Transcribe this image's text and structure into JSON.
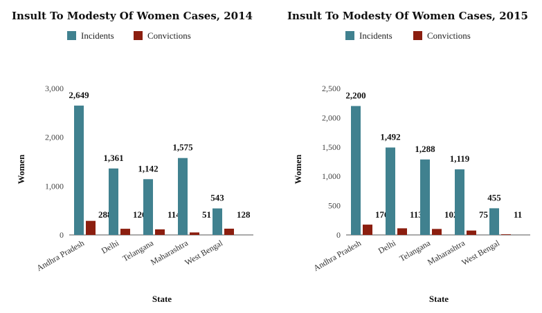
{
  "chart_data": [
    {
      "type": "bar",
      "title": "Insult To Modesty Of Women Cases, 2014",
      "xlabel": "State",
      "ylabel": "Women",
      "categories": [
        "Andhra Pradesh",
        "Delhi",
        "Telangana",
        "Maharashtra",
        "West Bengal"
      ],
      "series": [
        {
          "name": "Incidents",
          "color": "#40818f",
          "values": [
            2649,
            1361,
            1142,
            1575,
            543
          ],
          "labels": [
            "2,649",
            "1,361",
            "1,142",
            "1,575",
            "543"
          ]
        },
        {
          "name": "Convictions",
          "color": "#8b1e0f",
          "values": [
            288,
            126,
            114,
            51,
            128
          ],
          "labels": [
            "288",
            "126",
            "114",
            "51",
            "128"
          ]
        }
      ],
      "ylim": [
        0,
        3000
      ],
      "yticks": [
        0,
        1000,
        2000,
        3000
      ],
      "ytick_labels": [
        "0",
        "1,000",
        "2,000",
        "3,000"
      ],
      "legend_position": "top-center",
      "grid": false
    },
    {
      "type": "bar",
      "title": "Insult To Modesty Of Women Cases, 2015",
      "xlabel": "State",
      "ylabel": "Women",
      "categories": [
        "Andhra Pradesh",
        "Delhi",
        "Telangana",
        "Maharashtra",
        "West Bengal"
      ],
      "series": [
        {
          "name": "Incidents",
          "color": "#40818f",
          "values": [
            2200,
            1492,
            1288,
            1119,
            455
          ],
          "labels": [
            "2,200",
            "1,492",
            "1,288",
            "1,119",
            "455"
          ]
        },
        {
          "name": "Convictions",
          "color": "#8b1e0f",
          "values": [
            176,
            113,
            102,
            75,
            11
          ],
          "labels": [
            "176",
            "113",
            "102",
            "75",
            "11"
          ]
        }
      ],
      "ylim": [
        0,
        2500
      ],
      "yticks": [
        0,
        500,
        1000,
        1500,
        2000,
        2500
      ],
      "ytick_labels": [
        "0",
        "500",
        "1,000",
        "1,500",
        "2,000",
        "2,500"
      ],
      "legend_position": "top-center",
      "grid": false
    }
  ]
}
